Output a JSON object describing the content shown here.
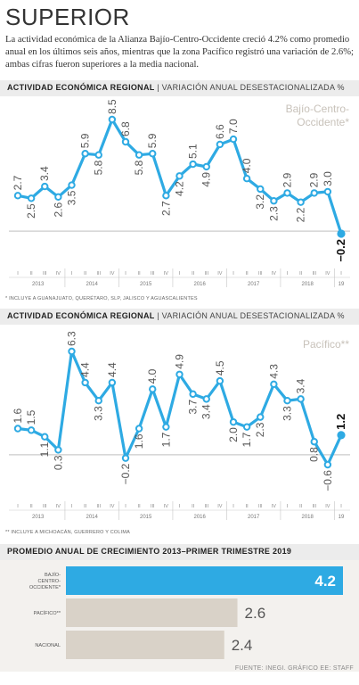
{
  "title": "SUPERIOR",
  "intro": "La actividad económica de la Alianza Bajío-Centro-Occidente creció 4.2% como promedio anual en los últimos seis años, mientras que la zona Pacífico registró una variación de 2.6%; ambas cifras fueron superiores a la media nacional.",
  "colors": {
    "accent": "#2eaae3",
    "bar_gray": "#d9d2c8",
    "header_bg": "#ececec"
  },
  "chart_data": [
    {
      "type": "line",
      "title": "ACTIVIDAD ECONÓMICA REGIONAL",
      "subtitle": "VARIACIÓN ANUAL DESESTACIONALIZADA %",
      "series_label": "Bajío-Centro-Occidente*",
      "series_label_lines": [
        "Bajío-Centro-",
        "Occidente*"
      ],
      "quarters": [
        "I",
        "II",
        "III",
        "IV",
        "I",
        "II",
        "III",
        "IV",
        "I",
        "II",
        "III",
        "IV",
        "I",
        "II",
        "III",
        "IV",
        "I",
        "II",
        "III",
        "IV",
        "I",
        "II",
        "III",
        "IV",
        "I"
      ],
      "years": [
        "2013",
        "2014",
        "2015",
        "2016",
        "2017",
        "2018",
        "19"
      ],
      "values": [
        2.7,
        2.5,
        3.4,
        2.6,
        3.5,
        5.9,
        5.8,
        8.5,
        6.8,
        5.8,
        5.9,
        2.7,
        4.2,
        5.1,
        4.9,
        6.6,
        7.0,
        4.0,
        3.2,
        2.3,
        2.9,
        2.2,
        2.9,
        3.0,
        -0.2
      ],
      "labels": [
        "2.7",
        "2.5",
        "3.4",
        "2.6",
        "3.5",
        "5.9",
        "5.8",
        "8.5",
        "6.8",
        "5.8",
        "5.9",
        "2.7",
        "4.2",
        "5.1",
        "4.9",
        "6.6",
        "7.0",
        "4.0",
        "3.2",
        "2.3",
        "2.9",
        "2.2",
        "2.9",
        "3.0",
        "−0.2"
      ],
      "label_above": [
        true,
        false,
        true,
        false,
        false,
        true,
        false,
        true,
        true,
        false,
        true,
        false,
        false,
        true,
        false,
        true,
        true,
        true,
        false,
        false,
        true,
        false,
        true,
        true,
        false
      ],
      "ylim": [
        -0.2,
        8.5
      ],
      "note": "* INCLUYE A GUANAJUATO, QUERÉTARO, SLP, JALISCO Y AGUASCALIENTES"
    },
    {
      "type": "line",
      "title": "ACTIVIDAD ECONÓMICA REGIONAL",
      "subtitle": "VARIACIÓN ANUAL DESESTACIONALIZADA %",
      "series_label": "Pacífico**",
      "series_label_lines": [
        "Pacífico**"
      ],
      "quarters": [
        "I",
        "II",
        "III",
        "IV",
        "I",
        "II",
        "III",
        "IV",
        "I",
        "II",
        "III",
        "IV",
        "I",
        "II",
        "III",
        "IV",
        "I",
        "II",
        "III",
        "IV",
        "I",
        "II",
        "III",
        "IV",
        "I"
      ],
      "years": [
        "2013",
        "2014",
        "2015",
        "2016",
        "2017",
        "2018",
        "19"
      ],
      "values": [
        1.6,
        1.5,
        1.1,
        0.3,
        6.3,
        4.4,
        3.3,
        4.4,
        -0.2,
        1.6,
        4.0,
        1.7,
        4.9,
        3.7,
        3.4,
        4.5,
        2.0,
        1.7,
        2.3,
        4.3,
        3.3,
        3.4,
        0.8,
        -0.6,
        1.2
      ],
      "labels": [
        "1.6",
        "1.5",
        "1.1",
        "0.3",
        "6.3",
        "4.4",
        "3.3",
        "4.4",
        "−0.2",
        "1.6",
        "4.0",
        "1.7",
        "4.9",
        "3.7",
        "3.4",
        "4.5",
        "2.0",
        "1.7",
        "2.3",
        "4.3",
        "3.3",
        "3.4",
        "0.8",
        "−0.6",
        "1.2"
      ],
      "label_above": [
        true,
        true,
        false,
        false,
        true,
        true,
        false,
        true,
        false,
        false,
        true,
        false,
        true,
        false,
        false,
        true,
        false,
        false,
        false,
        true,
        false,
        true,
        false,
        false,
        true
      ],
      "ylim": [
        -0.6,
        6.3
      ],
      "note": "** INCLUYE A MICHOACÁN, GUERRERO Y COLIMA"
    },
    {
      "type": "bar",
      "title": "PROMEDIO ANUAL DE CRECIMIENTO 2013–PRIMER TRIMESTRE 2019",
      "categories": [
        "BAJÍO-CENTRO-OCCIDENTE*",
        "PACÍFICO**",
        "NACIONAL"
      ],
      "category_lines": [
        [
          "BAJÍO-",
          "CENTRO-",
          "OCCIDENTE*"
        ],
        [
          "PACÍFICO**"
        ],
        [
          "NACIONAL"
        ]
      ],
      "values": [
        4.2,
        2.6,
        2.4
      ],
      "labels": [
        "4.2",
        "2.6",
        "2.4"
      ]
    }
  ],
  "source": "FUENTE: INEGI. GRÁFICO EE: STAFF"
}
